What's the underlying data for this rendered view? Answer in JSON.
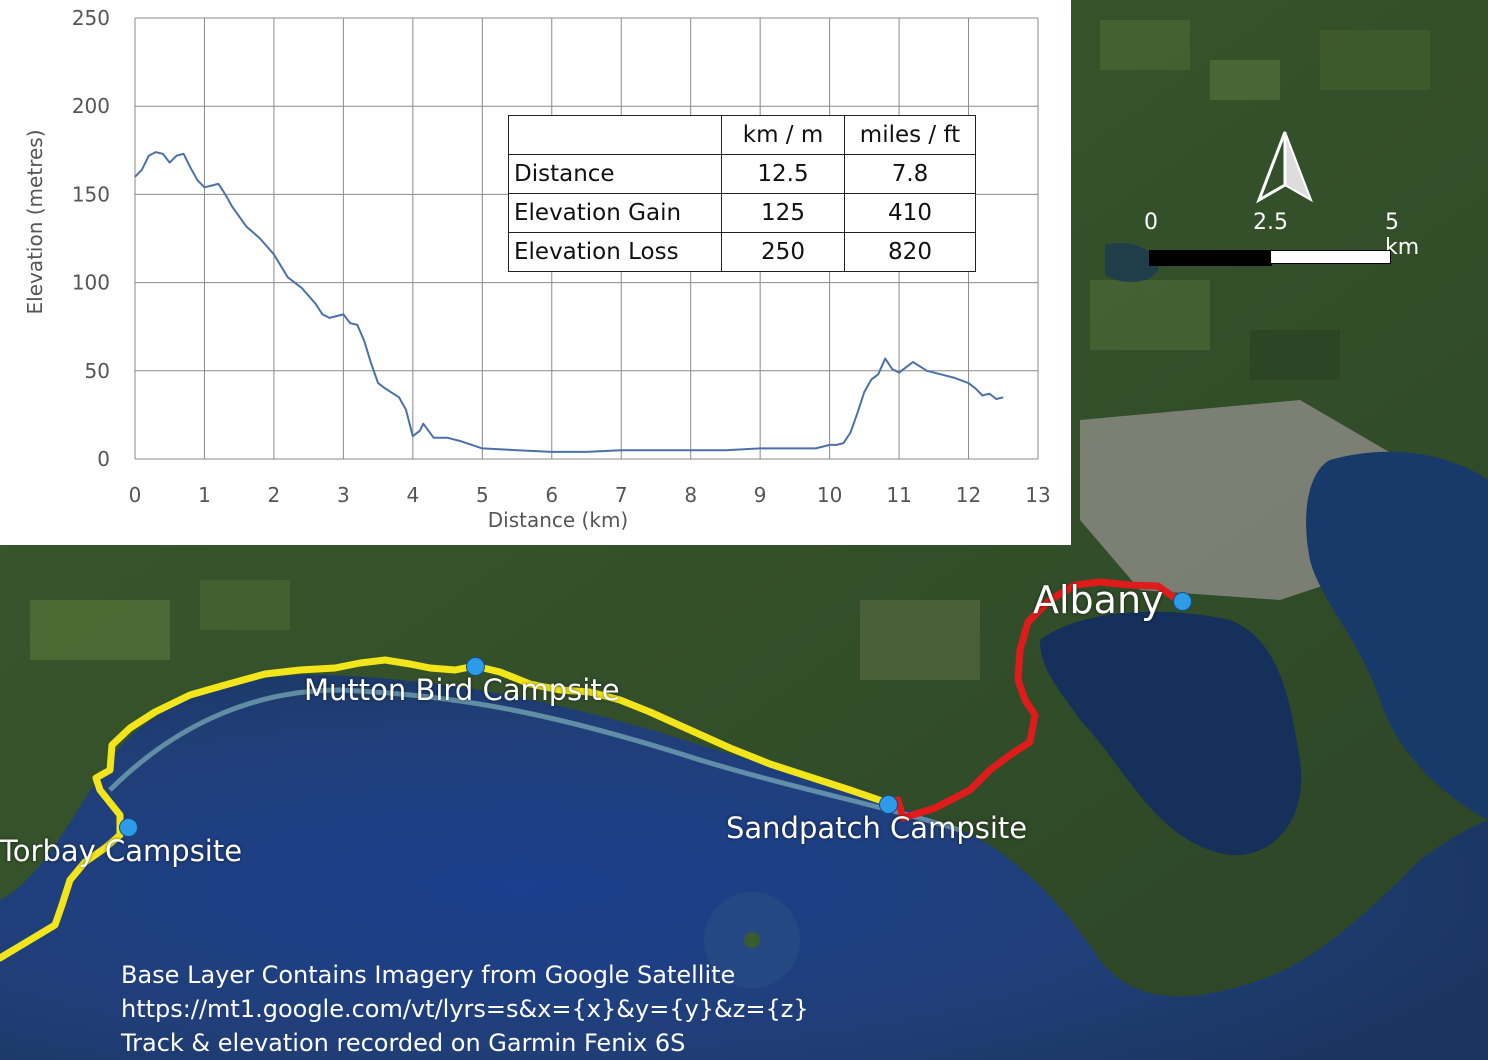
{
  "map": {
    "places": [
      {
        "name": "Torbay Campsite"
      },
      {
        "name": "Mutton Bird Campsite"
      },
      {
        "name": "Sandpatch Campsite"
      },
      {
        "name": "Albany"
      }
    ],
    "track_colors": {
      "walked": "#f2e51b",
      "final_leg": "#e01b1b"
    },
    "pin_color": "#2d9be8",
    "scale_bar": {
      "labels": [
        "0",
        "2.5",
        "5 km"
      ]
    },
    "north_arrow_icon": "north-arrow-icon",
    "credits": [
      "Base Layer Contains Imagery from Google Satellite",
      "https://mt1.google.com/vt/lyrs=s&x={x}&y={y}&z={z}",
      "Track & elevation recorded on Garmin Fenix 6S"
    ]
  },
  "stats_table": {
    "headers": [
      "",
      "km / m",
      "miles / ft"
    ],
    "rows": [
      [
        "Distance",
        "12.5",
        "7.8"
      ],
      [
        "Elevation Gain",
        "125",
        "410"
      ],
      [
        "Elevation Loss",
        "250",
        "820"
      ]
    ]
  },
  "chart_data": {
    "type": "line",
    "title": "",
    "xlabel": "Distance (km)",
    "ylabel": "Elevation (metres)",
    "xlim": [
      0,
      13
    ],
    "ylim": [
      0,
      250
    ],
    "xticks": [
      "0",
      "1",
      "2",
      "3",
      "4",
      "5",
      "6",
      "7",
      "8",
      "9",
      "10",
      "11",
      "12",
      "13"
    ],
    "yticks": [
      "0",
      "50",
      "100",
      "150",
      "200",
      "250"
    ],
    "grid": true,
    "line_color": "#4a72a8",
    "series": [
      {
        "x": [
          0,
          0.1,
          0.2,
          0.3,
          0.4,
          0.5,
          0.6,
          0.7,
          0.8,
          0.9,
          1.0,
          1.1,
          1.2,
          1.3,
          1.4,
          1.6,
          1.8,
          2.0,
          2.2,
          2.4,
          2.6,
          2.7,
          2.8,
          3.0,
          3.1,
          3.2,
          3.3,
          3.4,
          3.5,
          3.6,
          3.8,
          3.9,
          4.0,
          4.1,
          4.15,
          4.3,
          4.5,
          4.7,
          5.0,
          5.5,
          6.0,
          6.5,
          7.0,
          7.5,
          8.0,
          8.5,
          9.0,
          9.5,
          9.8,
          10.0,
          10.1,
          10.2,
          10.3,
          10.4,
          10.5,
          10.6,
          10.7,
          10.8,
          10.9,
          11.0,
          11.1,
          11.2,
          11.4,
          11.6,
          11.8,
          12.0,
          12.1,
          12.2,
          12.3,
          12.4,
          12.5
        ],
        "y": [
          160,
          164,
          172,
          174,
          173,
          168,
          172,
          173,
          165,
          158,
          154,
          155,
          156,
          150,
          143,
          132,
          125,
          116,
          103,
          97,
          88,
          82,
          80,
          82,
          77,
          76,
          67,
          54,
          43,
          40,
          35,
          28,
          13,
          16,
          20,
          12,
          12,
          10,
          6,
          5,
          4,
          4,
          5,
          5,
          5,
          5,
          6,
          6,
          6,
          8,
          8,
          9,
          15,
          26,
          38,
          45,
          48,
          57,
          51,
          49,
          52,
          55,
          50,
          48,
          46,
          43,
          40,
          36,
          37,
          34,
          35
        ]
      }
    ]
  }
}
